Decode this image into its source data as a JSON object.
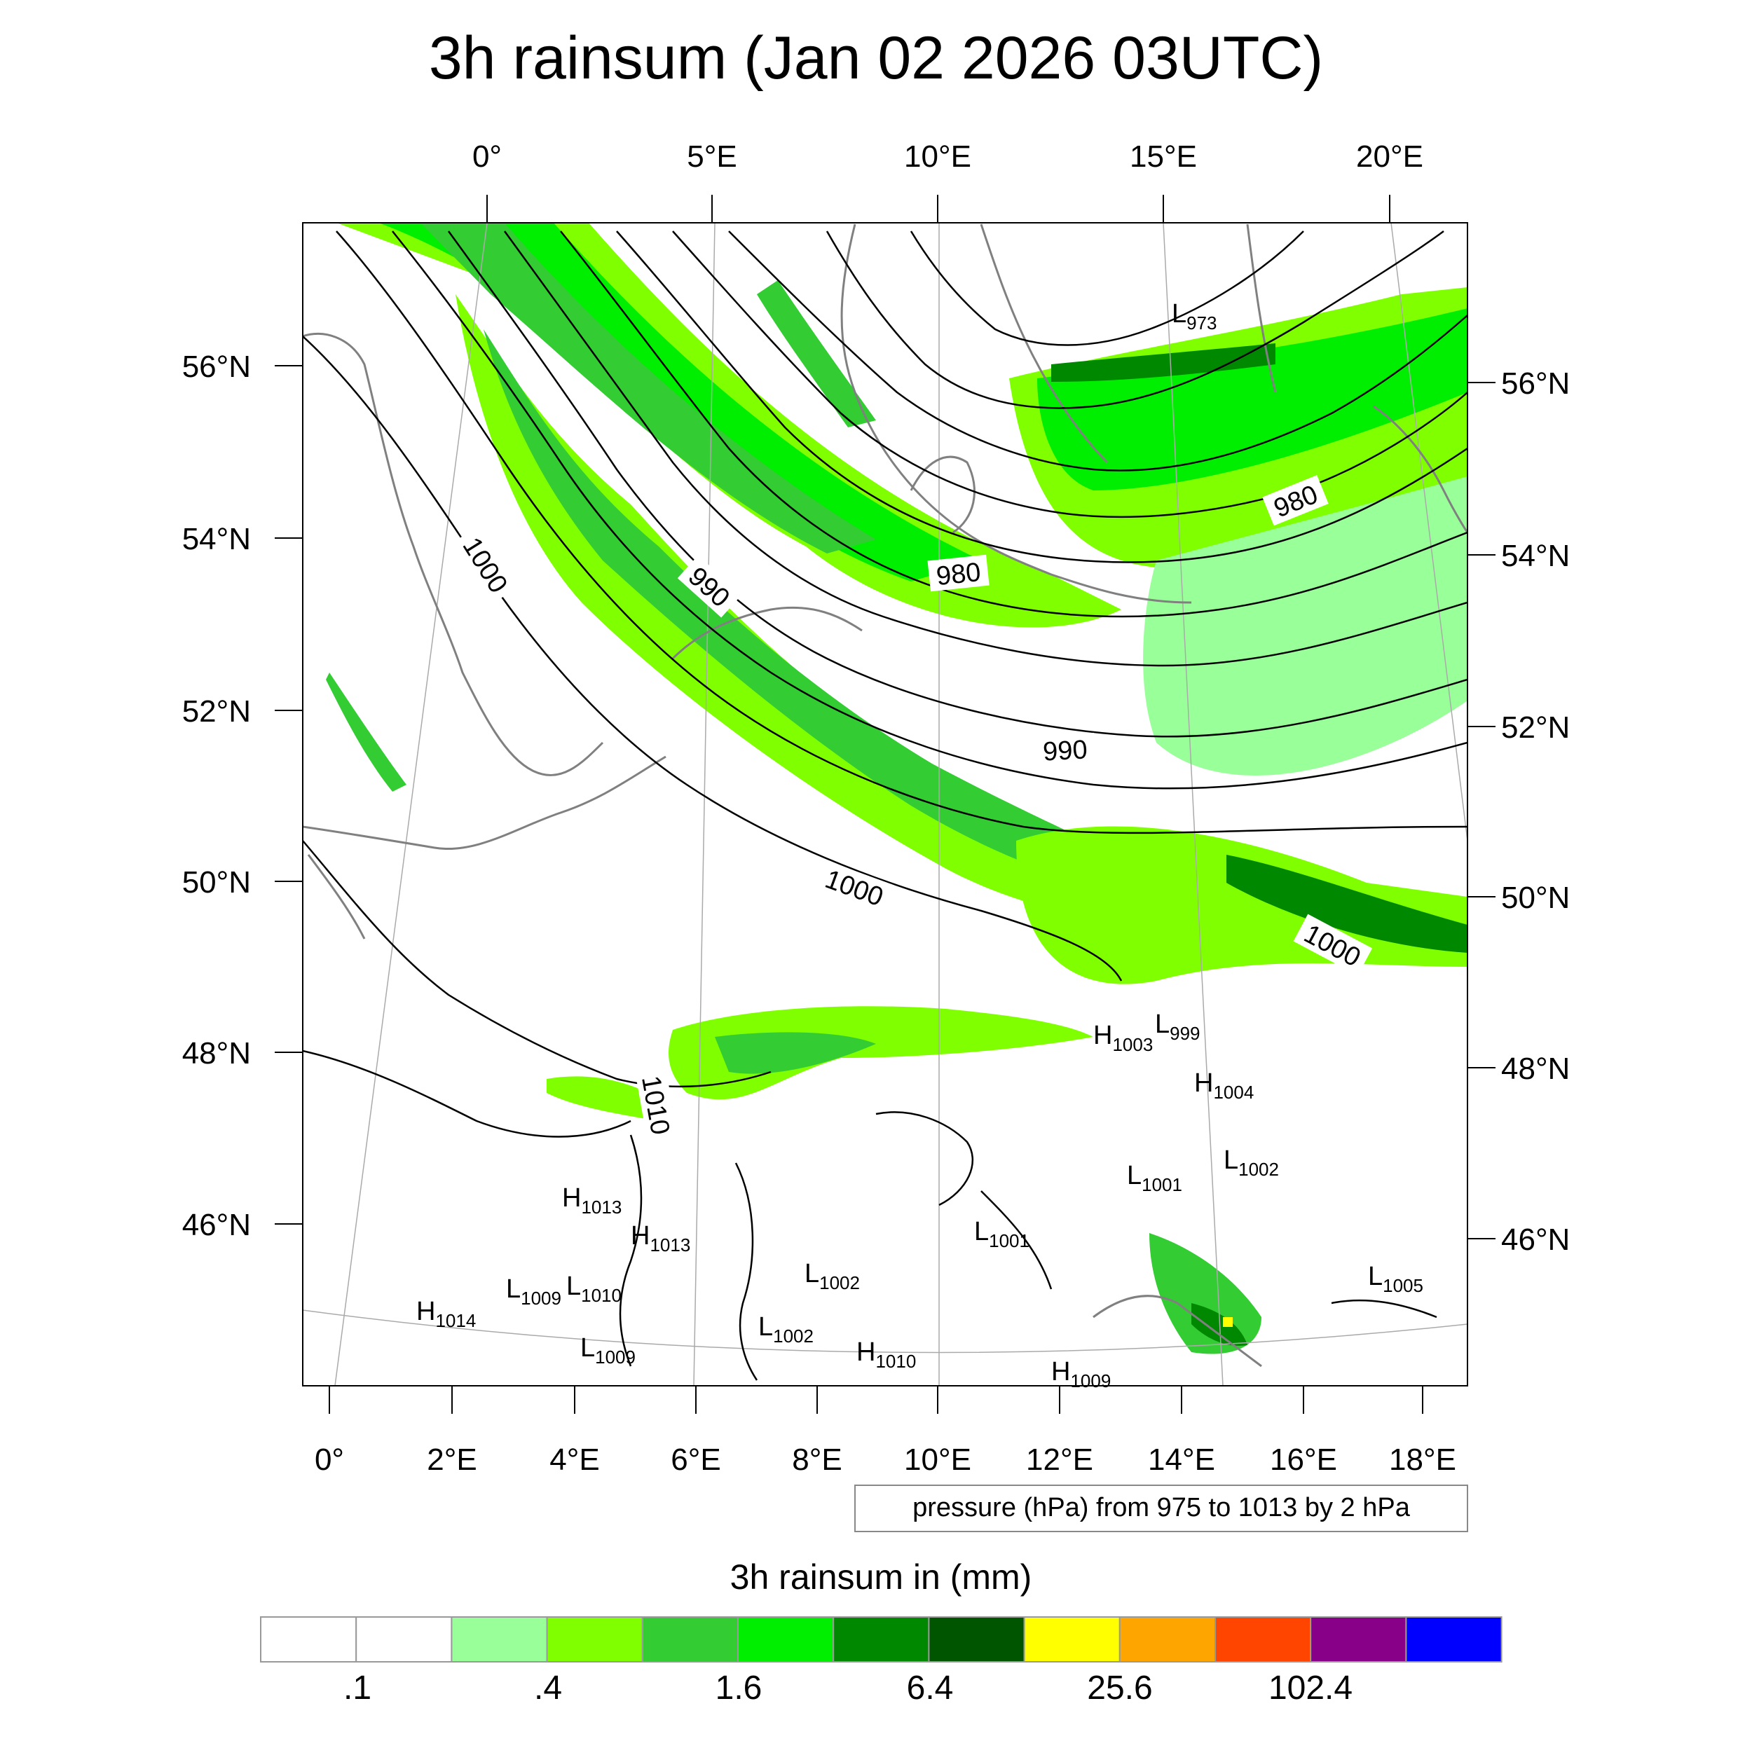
{
  "title": "3h rainsum (Jan 02 2026 03UTC)",
  "top_lon_labels": [
    "0°",
    "5°E",
    "10°E",
    "15°E",
    "20°E"
  ],
  "bottom_lon_labels": [
    "0°",
    "2°E",
    "4°E",
    "6°E",
    "8°E",
    "10°E",
    "12°E",
    "14°E",
    "16°E",
    "18°E"
  ],
  "left_lat_labels": [
    "56°N",
    "54°N",
    "52°N",
    "50°N",
    "48°N",
    "46°N"
  ],
  "right_lat_labels": [
    "56°N",
    "54°N",
    "52°N",
    "50°N",
    "48°N",
    "46°N"
  ],
  "contour_labels": [
    "1000",
    "990",
    "980",
    "980",
    "990",
    "1000",
    "1000",
    "1010"
  ],
  "pressure_centers": [
    {
      "type": "L",
      "value": "973"
    },
    {
      "type": "H",
      "value": "1003"
    },
    {
      "type": "L",
      "value": "999"
    },
    {
      "type": "H",
      "value": "1004"
    },
    {
      "type": "L",
      "value": "1002"
    },
    {
      "type": "L",
      "value": "1001"
    },
    {
      "type": "H",
      "value": "1013"
    },
    {
      "type": "H",
      "value": "1013"
    },
    {
      "type": "L",
      "value": "1001"
    },
    {
      "type": "L",
      "value": "1009"
    },
    {
      "type": "L",
      "value": "1010"
    },
    {
      "type": "L",
      "value": "1002"
    },
    {
      "type": "H",
      "value": "1014"
    },
    {
      "type": "L",
      "value": "1002"
    },
    {
      "type": "L",
      "value": "1009"
    },
    {
      "type": "H",
      "value": "1010"
    },
    {
      "type": "H",
      "value": "1009"
    },
    {
      "type": "L",
      "value": "1005"
    }
  ],
  "pressure_note": "pressure (hPa) from 975 to 1013 by 2 hPa",
  "colorbar_title": "3h rainsum in (mm)",
  "colorbar_colors": [
    "#ffffff",
    "#ffffff",
    "#99ff99",
    "#80ff00",
    "#33cc33",
    "#00ee00",
    "#008800",
    "#005500",
    "#ffff00",
    "#ffa500",
    "#ff4500",
    "#880088",
    "#0000ff"
  ],
  "colorbar_labels": [
    ".1",
    ".4",
    "1.6",
    "6.4",
    "25.6",
    "102.4"
  ],
  "colors": {
    "coast": "#808080",
    "contour": "#000000",
    "frame": "#000000"
  }
}
